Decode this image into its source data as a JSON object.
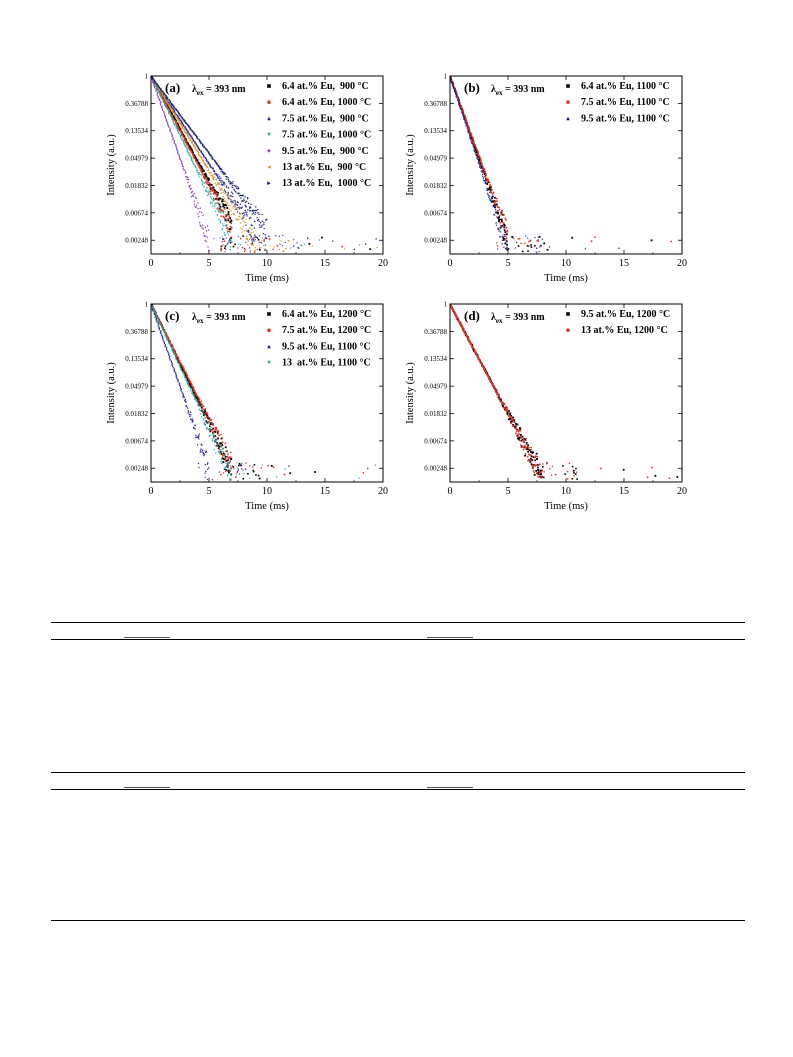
{
  "figure": {
    "panels": [
      {
        "label": "(a)",
        "excitation_symbol": "λ",
        "excitation_sub": "ex",
        "excitation_value": " = 393 nm",
        "legend": [
          "6.4 at.% Eu,  900 °C",
          "6.4 at.% Eu, 1000 °C",
          "7.5 at.% Eu,  900 °C",
          "7.5 at.% Eu, 1000 °C",
          "9.5 at.% Eu,  900 °C",
          "13 at.% Eu,  900 °C",
          "13 at.% Eu,  1000 °C"
        ],
        "xlabel": "Time (ms)",
        "ylabel": "Intensity (a.u.)",
        "xticks": [
          "0",
          "5",
          "10",
          "15",
          "20"
        ],
        "yticks": [
          "1",
          "0.36788",
          "0.13534",
          "0.04979",
          "0.01832",
          "0.00674",
          "0.00248"
        ]
      },
      {
        "label": "(b)",
        "excitation_symbol": "λ",
        "excitation_sub": "ex",
        "excitation_value": " = 393 nm",
        "legend": [
          "6.4 at.% Eu, 1100 °C",
          "7.5 at.% Eu, 1100 °C",
          "9.5 at.% Eu, 1100 °C"
        ],
        "xlabel": "Time (ms)",
        "ylabel": "Intensity (a.u.)",
        "xticks": [
          "0",
          "5",
          "10",
          "15",
          "20"
        ],
        "yticks": [
          "1",
          "0.36788",
          "0.13534",
          "0.04979",
          "0.01832",
          "0.00674",
          "0.00248"
        ]
      },
      {
        "label": "(c)",
        "excitation_symbol": "λ",
        "excitation_sub": "ex",
        "excitation_value": " = 393 nm",
        "legend": [
          "6.4 at.% Eu, 1200 °C",
          "7.5 at.% Eu, 1200 °C",
          "9.5 at.% Eu, 1100 °C",
          "13  at.% Eu, 1100 °C"
        ],
        "xlabel": "Time (ms)",
        "ylabel": "Intensity (a.u.)",
        "xticks": [
          "0",
          "5",
          "10",
          "15",
          "20"
        ],
        "yticks": [
          "1",
          "0.36788",
          "0.13534",
          "0.04979",
          "0.01832",
          "0.00674",
          "0.00248"
        ]
      },
      {
        "label": "(d)",
        "excitation_symbol": "λ",
        "excitation_sub": "ex",
        "excitation_value": " = 393 nm",
        "legend": [
          "9.5 at.% Eu, 1200 °C",
          "13 at.% Eu, 1200 °C"
        ],
        "xlabel": "Time (ms)",
        "ylabel": "Intensity (a.u.)",
        "xticks": [
          "0",
          "5",
          "10",
          "15",
          "20"
        ],
        "yticks": [
          "1",
          "0.36788",
          "0.13534",
          "0.04979",
          "0.01832",
          "0.00674",
          "0.00248"
        ]
      }
    ]
  },
  "chart_data": [
    {
      "type": "scatter",
      "panel": "(a)",
      "title": "",
      "xlabel": "Time (ms)",
      "ylabel": "Intensity (a.u.)",
      "xlim": [
        0,
        20
      ],
      "ylim": [
        0.0015,
        1
      ],
      "yscale": "log (natural)",
      "grid": false,
      "legend_position": "top-right",
      "series": [
        {
          "name": "6.4 at.% Eu,  900 °C",
          "color": "#000000",
          "marker": "square",
          "x": [
            0,
            1,
            2,
            3,
            4,
            5,
            6,
            7
          ],
          "y": [
            1,
            0.46,
            0.212,
            0.097,
            0.045,
            0.021,
            0.0095,
            0.0044
          ]
        },
        {
          "name": "6.4 at.% Eu, 1000 °C",
          "color": "#e8321e",
          "marker": "circle",
          "x": [
            0,
            1,
            2,
            3,
            4,
            5,
            6,
            7
          ],
          "y": [
            1,
            0.45,
            0.202,
            0.091,
            0.041,
            0.018,
            0.0083,
            0.0037
          ]
        },
        {
          "name": "7.5 at.% Eu,  900 °C",
          "color": "#1f1f8f",
          "marker": "triangle-up",
          "x": [
            0,
            1,
            2,
            3,
            4,
            5,
            6,
            7,
            8,
            9
          ],
          "y": [
            1,
            0.53,
            0.28,
            0.148,
            0.078,
            0.041,
            0.022,
            0.0116,
            0.0061,
            0.0032
          ]
        },
        {
          "name": "7.5 at.% Eu, 1000 °C",
          "color": "#20b0a0",
          "marker": "triangle-down",
          "x": [
            0,
            1,
            2,
            3,
            4,
            5,
            6,
            7
          ],
          "y": [
            1,
            0.42,
            0.176,
            0.074,
            0.031,
            0.013,
            0.0055,
            0.0023
          ]
        },
        {
          "name": "9.5 at.% Eu,  900 °C",
          "color": "#8a3cb4",
          "marker": "diamond",
          "x": [
            0,
            1,
            2,
            3,
            4,
            5
          ],
          "y": [
            1,
            0.3,
            0.09,
            0.027,
            0.0081,
            0.0024
          ]
        },
        {
          "name": "13 at.% Eu,  900 °C",
          "color": "#d79a16",
          "marker": "triangle-left",
          "x": [
            0,
            1,
            2,
            3,
            4,
            5,
            6,
            7,
            8,
            9
          ],
          "y": [
            1,
            0.5,
            0.25,
            0.125,
            0.0625,
            0.031,
            0.0156,
            0.0078,
            0.0039,
            0.002
          ]
        },
        {
          "name": "13 at.% Eu,  1000 °C",
          "color": "#152070",
          "marker": "triangle-right",
          "x": [
            0,
            1,
            2,
            3,
            4,
            5,
            6,
            7,
            8,
            9,
            10
          ],
          "y": [
            1,
            0.57,
            0.325,
            0.185,
            0.106,
            0.06,
            0.034,
            0.0196,
            0.0112,
            0.0064,
            0.0036
          ]
        }
      ]
    },
    {
      "type": "scatter",
      "panel": "(b)",
      "title": "",
      "xlabel": "Time (ms)",
      "ylabel": "Intensity (a.u.)",
      "xlim": [
        0,
        20
      ],
      "ylim": [
        0.0015,
        1
      ],
      "yscale": "log (natural)",
      "grid": false,
      "legend_position": "top-right",
      "series": [
        {
          "name": "6.4 at.% Eu, 1100 °C",
          "color": "#000000",
          "marker": "square",
          "x": [
            0,
            1,
            2,
            3,
            4,
            5
          ],
          "y": [
            1,
            0.3,
            0.09,
            0.027,
            0.0081,
            0.0024
          ]
        },
        {
          "name": "7.5 at.% Eu, 1100 °C",
          "color": "#e8321e",
          "marker": "circle",
          "x": [
            0,
            1,
            2,
            3,
            4,
            5
          ],
          "y": [
            1,
            0.31,
            0.096,
            0.03,
            0.0092,
            0.0029
          ]
        },
        {
          "name": "9.5 at.% Eu, 1100 °C",
          "color": "#1f1f8f",
          "marker": "triangle-up",
          "x": [
            0,
            1,
            2,
            3,
            4,
            5
          ],
          "y": [
            1,
            0.28,
            0.078,
            0.022,
            0.0061,
            0.0017
          ]
        }
      ]
    },
    {
      "type": "scatter",
      "panel": "(c)",
      "title": "",
      "xlabel": "Time (ms)",
      "ylabel": "Intensity (a.u.)",
      "xlim": [
        0,
        20
      ],
      "ylim": [
        0.0015,
        1
      ],
      "yscale": "log (natural)",
      "grid": false,
      "legend_position": "top-right",
      "series": [
        {
          "name": "6.4 at.% Eu, 1200 °C",
          "color": "#000000",
          "marker": "square",
          "x": [
            0,
            1,
            2,
            3,
            4,
            5,
            6,
            7
          ],
          "y": [
            1,
            0.42,
            0.176,
            0.074,
            0.031,
            0.013,
            0.0055,
            0.0023
          ]
        },
        {
          "name": "7.5 at.% Eu, 1200 °C",
          "color": "#e8321e",
          "marker": "circle",
          "x": [
            0,
            1,
            2,
            3,
            4,
            5,
            6,
            7
          ],
          "y": [
            1,
            0.43,
            0.185,
            0.08,
            0.034,
            0.0147,
            0.0063,
            0.0027
          ]
        },
        {
          "name": "9.5 at.% Eu, 1100 °C",
          "color": "#1f1f8f",
          "marker": "triangle-up",
          "x": [
            0,
            1,
            2,
            3,
            4,
            5
          ],
          "y": [
            1,
            0.3,
            0.09,
            0.027,
            0.0081,
            0.0024
          ]
        },
        {
          "name": "13  at.% Eu, 1100 °C",
          "color": "#20b0a0",
          "marker": "triangle-down",
          "x": [
            0,
            1,
            2,
            3,
            4,
            5,
            6,
            7
          ],
          "y": [
            1,
            0.4,
            0.16,
            0.064,
            0.026,
            0.0102,
            0.0041,
            0.0016
          ]
        }
      ]
    },
    {
      "type": "scatter",
      "panel": "(d)",
      "title": "",
      "xlabel": "Time (ms)",
      "ylabel": "Intensity (a.u.)",
      "xlim": [
        0,
        20
      ],
      "ylim": [
        0.0015,
        1
      ],
      "yscale": "log (natural)",
      "grid": false,
      "legend_position": "top-right",
      "series": [
        {
          "name": "9.5 at.% Eu, 1200 °C",
          "color": "#000000",
          "marker": "square",
          "x": [
            0,
            1,
            2,
            3,
            4,
            5,
            6,
            7,
            8
          ],
          "y": [
            1,
            0.45,
            0.2,
            0.091,
            0.041,
            0.018,
            0.0083,
            0.0037,
            0.0017
          ]
        },
        {
          "name": "13 at.% Eu, 1200 °C",
          "color": "#e8321e",
          "marker": "circle",
          "x": [
            0,
            1,
            2,
            3,
            4,
            5,
            6,
            7,
            8
          ],
          "y": [
            1,
            0.45,
            0.2,
            0.09,
            0.04,
            0.018,
            0.0082,
            0.0037,
            0.0017
          ]
        }
      ]
    }
  ]
}
